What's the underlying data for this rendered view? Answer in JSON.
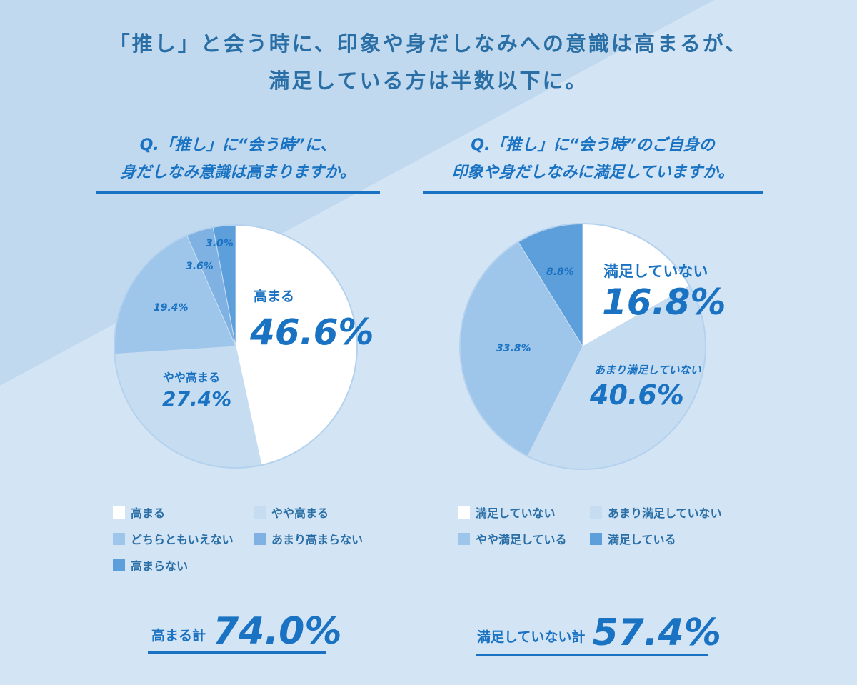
{
  "headline": {
    "line1": "「推し」と会う時に、印象や身だしなみへの意識は高まるが、",
    "line2": "満足している方は半数以下に。"
  },
  "colors": {
    "background": "#d3e4f4",
    "background_triangle": "#c0d9ef",
    "text": "#1a72c2",
    "slice_1": "#ffffff",
    "slice_2": "#c5dcf1",
    "slice_3": "#9ec5ea",
    "slice_4": "#7fb2e2",
    "slice_5": "#5c9fdb"
  },
  "chart_data": [
    {
      "type": "pie",
      "question_line1": "Q.「推し」に“会う時”に、",
      "question_line2": "身だしなみ意識は高まりますか。",
      "slices": [
        {
          "label": "高まる",
          "value": 46.6,
          "value_text": "46.6%",
          "color": "#ffffff"
        },
        {
          "label": "やや高まる",
          "value": 27.4,
          "value_text": "27.4%",
          "color": "#c5dcf1"
        },
        {
          "label": "どちらともいえない",
          "value": 19.4,
          "value_text": "19.4%",
          "color": "#9ec5ea"
        },
        {
          "label": "あまり高まらない",
          "value": 3.6,
          "value_text": "3.6%",
          "color": "#7fb2e2"
        },
        {
          "label": "高まらない",
          "value": 3.0,
          "value_text": "3.0%",
          "color": "#5c9fdb"
        }
      ],
      "total_label": "高まる計",
      "total_value": "74.0%"
    },
    {
      "type": "pie",
      "question_line1": "Q.「推し」に“会う時”のご自身の",
      "question_line2": "印象や身だしなみに満足していますか。",
      "slices": [
        {
          "label": "満足していない",
          "value": 16.8,
          "value_text": "16.8%",
          "color": "#ffffff"
        },
        {
          "label": "あまり満足していない",
          "value": 40.6,
          "value_text": "40.6%",
          "color": "#c5dcf1"
        },
        {
          "label": "やや満足している",
          "value": 33.8,
          "value_text": "33.8%",
          "color": "#9ec5ea"
        },
        {
          "label": "満足している",
          "value": 8.8,
          "value_text": "8.8%",
          "color": "#5c9fdb"
        }
      ],
      "total_label": "満足していない計",
      "total_value": "57.4%"
    }
  ]
}
